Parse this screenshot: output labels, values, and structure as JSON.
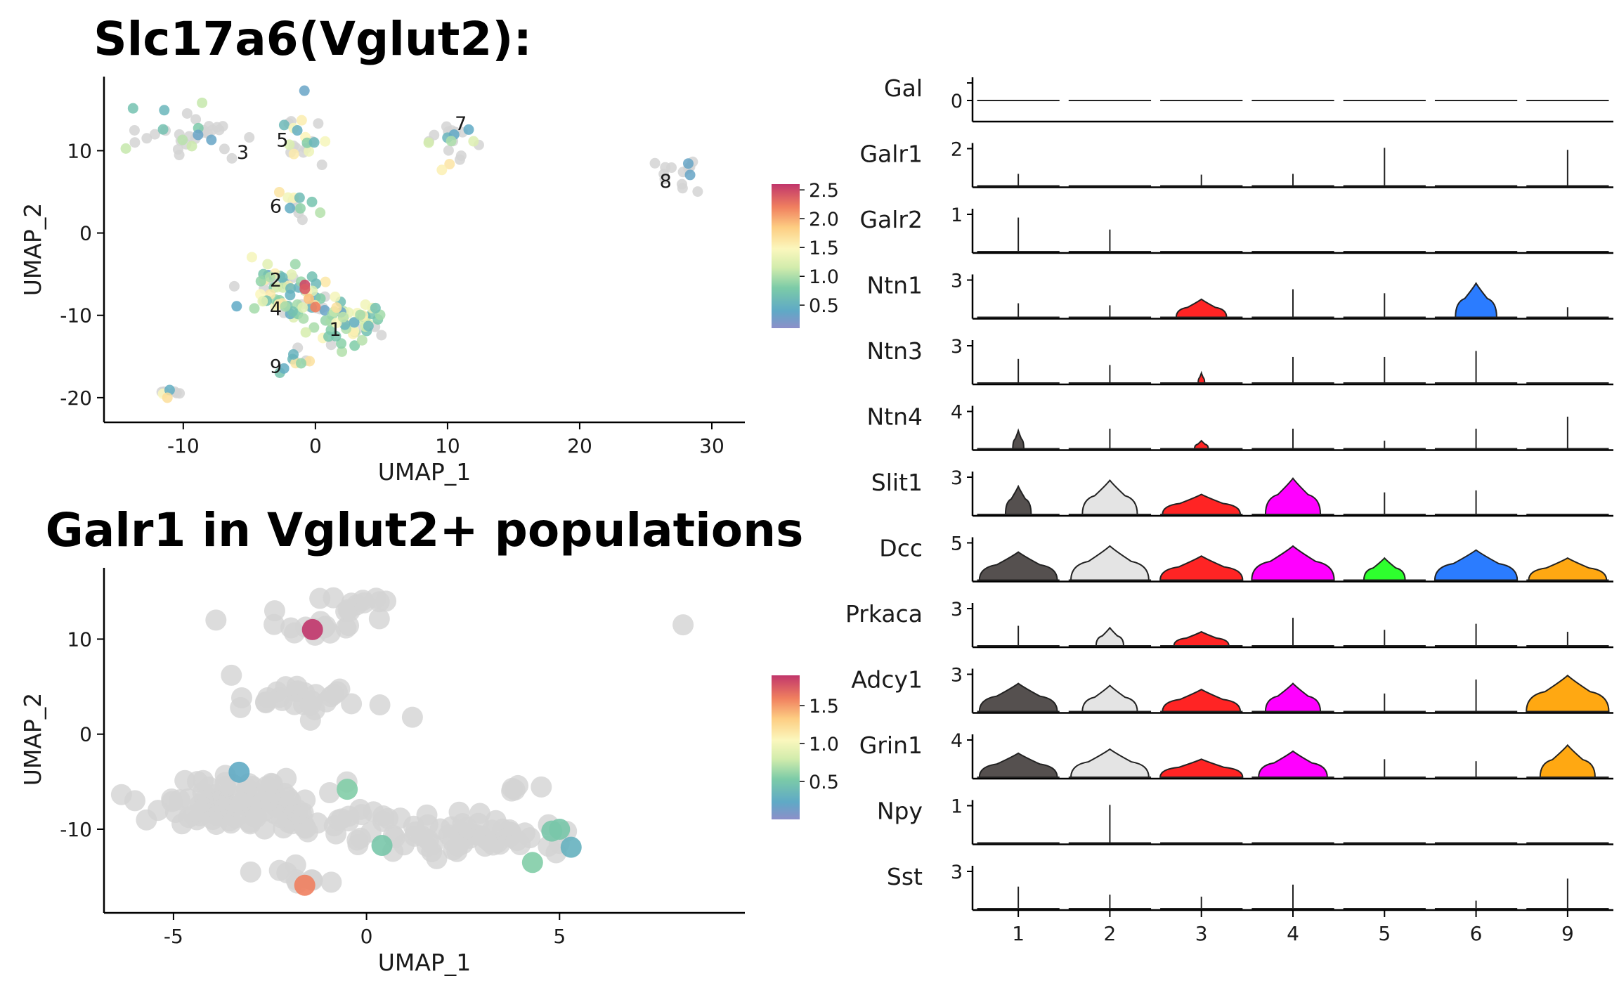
{
  "chart_data": [
    {
      "type": "scatter",
      "title": "Slc17a6(Vglut2):",
      "xlabel": "UMAP_1",
      "ylabel": "UMAP_2",
      "xlim": [
        -16,
        32.5
      ],
      "ylim": [
        -23,
        19
      ],
      "xticks": [
        -10,
        0,
        10,
        20,
        30
      ],
      "yticks": [
        -20,
        -10,
        0,
        10
      ],
      "xtick_labels": [
        "-10",
        "0",
        "10",
        "20",
        "30"
      ],
      "ytick_labels": [
        "-20",
        "-10",
        "0",
        "10"
      ],
      "colorbar": {
        "colormap": "Spectral_r",
        "min": 0.1,
        "max": 2.6,
        "ticks": [
          0.5,
          1.0,
          1.5,
          2.0,
          2.5
        ],
        "tick_labels": [
          "0.5",
          "1.0",
          "1.5",
          "2.0",
          "2.5"
        ]
      },
      "cluster_labels": [
        {
          "text": "1",
          "x": 1.5,
          "y": -12.5
        },
        {
          "text": "2",
          "x": -3,
          "y": -6.5
        },
        {
          "text": "3",
          "x": -5.5,
          "y": 9
        },
        {
          "text": "4",
          "x": -3,
          "y": -10
        },
        {
          "text": "5",
          "x": -2.5,
          "y": 10.5
        },
        {
          "text": "6",
          "x": -3,
          "y": 2.5
        },
        {
          "text": "7",
          "x": 11,
          "y": 12.5
        },
        {
          "text": "8",
          "x": 26.5,
          "y": 5.5
        },
        {
          "text": "9",
          "x": -3,
          "y": -17
        }
      ],
      "clusters": [
        {
          "name": "1",
          "cx": 2.5,
          "cy": -11,
          "sx": 1.6,
          "sy": 1.3,
          "n": 55,
          "expr_frac": 0.85
        },
        {
          "name": "2",
          "cx": -2.5,
          "cy": -6.5,
          "sx": 1.5,
          "sy": 1.4,
          "n": 45,
          "expr_frac": 0.75
        },
        {
          "name": "4",
          "cx": -1.5,
          "cy": -9,
          "sx": 1.2,
          "sy": 1.0,
          "n": 25,
          "expr_frac": 0.7
        },
        {
          "name": "3",
          "cx": -10,
          "cy": 12,
          "sx": 1.8,
          "sy": 1.4,
          "n": 35,
          "expr_frac": 0.2
        },
        {
          "name": "5",
          "cx": -1,
          "cy": 11.5,
          "sx": 1.0,
          "sy": 1.8,
          "n": 22,
          "expr_frac": 0.45
        },
        {
          "name": "6",
          "cx": -1.5,
          "cy": 3.5,
          "sx": 0.8,
          "sy": 1.0,
          "n": 12,
          "expr_frac": 0.6
        },
        {
          "name": "7",
          "cx": 10.5,
          "cy": 11,
          "sx": 0.9,
          "sy": 1.0,
          "n": 20,
          "expr_frac": 0.45
        },
        {
          "name": "8",
          "cx": 28,
          "cy": 6.5,
          "sx": 0.9,
          "sy": 1.1,
          "n": 14,
          "expr_frac": 0.15
        },
        {
          "name": "9",
          "cx": -1.5,
          "cy": -15.5,
          "sx": 0.6,
          "sy": 0.8,
          "n": 10,
          "expr_frac": 0.6
        },
        {
          "name": "",
          "cx": -11,
          "cy": -19.5,
          "sx": 0.6,
          "sy": 0.4,
          "n": 8,
          "expr_frac": 0.3
        }
      ],
      "high_points": [
        {
          "x": -0.8,
          "y": -6.3,
          "v": 2.5
        },
        {
          "x": -0.8,
          "y": -6.8,
          "v": 2.4
        },
        {
          "x": 0,
          "y": -9,
          "v": 2.2
        },
        {
          "x": -0.5,
          "y": -8,
          "v": 1.9
        }
      ]
    },
    {
      "type": "scatter",
      "title": "Galr1 in Vglut2+ populations",
      "xlabel": "UMAP_1",
      "ylabel": "UMAP_2",
      "xlim": [
        -6.8,
        9.8
      ],
      "ylim": [
        -18.8,
        17.5
      ],
      "xticks": [
        -5,
        0,
        5
      ],
      "yticks": [
        -10,
        0,
        10
      ],
      "xtick_labels": [
        "-5",
        "0",
        "5"
      ],
      "ytick_labels": [
        "-10",
        "0",
        "10"
      ],
      "colorbar": {
        "colormap": "Spectral_r",
        "min": 0.0,
        "max": 1.9,
        "ticks": [
          0.5,
          1.0,
          1.5
        ],
        "tick_labels": [
          "0.5",
          "1.0",
          "1.5"
        ]
      },
      "clusters": [
        {
          "cx": -3.5,
          "cy": -7,
          "sx": 1.0,
          "sy": 1.3,
          "n": 70
        },
        {
          "cx": -1.5,
          "cy": -9,
          "sx": 1.3,
          "sy": 0.7,
          "n": 45
        },
        {
          "cx": 2.5,
          "cy": -11,
          "sx": 1.5,
          "sy": 1.0,
          "n": 60
        },
        {
          "cx": -1.5,
          "cy": 3.5,
          "sx": 1.0,
          "sy": 1.2,
          "n": 28
        },
        {
          "cx": -1.2,
          "cy": 11,
          "sx": 0.6,
          "sy": 1.0,
          "n": 16
        },
        {
          "cx": -0.5,
          "cy": 14,
          "sx": 0.4,
          "sy": 0.5,
          "n": 10
        },
        {
          "cx": -1.8,
          "cy": -15,
          "sx": 0.4,
          "sy": 0.6,
          "n": 8
        },
        {
          "cx": 3.8,
          "cy": -6,
          "sx": 0.3,
          "sy": 0.3,
          "n": 5
        }
      ],
      "extra_points": [
        {
          "x": -3.9,
          "y": 12,
          "v": 0
        },
        {
          "x": 8.2,
          "y": 11.5,
          "v": 0
        },
        {
          "x": 0.5,
          "y": 14,
          "v": 0
        },
        {
          "x": -3.5,
          "y": 6.2,
          "v": 0
        },
        {
          "x": -6,
          "y": -7,
          "v": 0
        },
        {
          "x": -3,
          "y": -14.5,
          "v": 0
        }
      ],
      "expressing_points": [
        {
          "x": -1.4,
          "y": 11,
          "v": 1.9
        },
        {
          "x": -1.6,
          "y": -15.9,
          "v": 1.6
        },
        {
          "x": -3.3,
          "y": -4,
          "v": 0.25
        },
        {
          "x": -0.5,
          "y": -5.8,
          "v": 0.55
        },
        {
          "x": 0.4,
          "y": -11.7,
          "v": 0.5
        },
        {
          "x": 4.3,
          "y": -13.5,
          "v": 0.55
        },
        {
          "x": 4.8,
          "y": -10.2,
          "v": 0.5
        },
        {
          "x": 5.0,
          "y": -10.0,
          "v": 0.5
        },
        {
          "x": 5.3,
          "y": -11.9,
          "v": 0.3
        }
      ]
    },
    {
      "type": "violin",
      "categories": [
        "1",
        "2",
        "3",
        "4",
        "5",
        "6",
        "9"
      ],
      "category_colors": [
        "#55504f",
        "#e4e4e4",
        "#ff2424",
        "#ff00ff",
        "#2eff2e",
        "#2b7cff",
        "#ffa812"
      ],
      "genes": [
        {
          "name": "Gal",
          "ymax": "0",
          "heights": [
            0,
            0,
            0,
            0,
            0,
            0,
            0
          ],
          "widths": [
            0,
            0,
            0,
            0,
            0,
            0,
            0
          ]
        },
        {
          "name": "Galr1",
          "ymax": "2",
          "heights": [
            0.3,
            0,
            0.28,
            0.3,
            0.95,
            0,
            0.9
          ],
          "widths": [
            0.015,
            0,
            0.04,
            0.015,
            0.015,
            0,
            0.015
          ]
        },
        {
          "name": "Galr2",
          "ymax": "1",
          "heights": [
            0.85,
            0.55,
            0,
            0,
            0,
            0,
            0
          ],
          "widths": [
            0.015,
            0.015,
            0,
            0,
            0,
            0,
            0
          ]
        },
        {
          "name": "Ntn1",
          "ymax": "3",
          "heights": [
            0.35,
            0.3,
            0.45,
            0.7,
            0.6,
            0.85,
            0.25
          ],
          "widths": [
            0.015,
            0.015,
            0.55,
            0.015,
            0.025,
            0.45,
            0.06
          ]
        },
        {
          "name": "Ntn3",
          "ymax": "3",
          "heights": [
            0.6,
            0.45,
            0.25,
            0.65,
            0.65,
            0.8,
            0
          ],
          "widths": [
            0.015,
            0.015,
            0.07,
            0.015,
            0.02,
            0.015,
            0
          ]
        },
        {
          "name": "Ntn4",
          "ymax": "4",
          "heights": [
            0.45,
            0.5,
            0.2,
            0.5,
            0.2,
            0.5,
            0.8
          ],
          "widths": [
            0.12,
            0.015,
            0.15,
            0.015,
            0.015,
            0.015,
            0.035
          ]
        },
        {
          "name": "Slit1",
          "ymax": "3",
          "heights": [
            0.7,
            0.85,
            0.5,
            0.9,
            0.55,
            0.6,
            0
          ],
          "widths": [
            0.28,
            0.6,
            0.85,
            0.6,
            0.015,
            0.015,
            0
          ]
        },
        {
          "name": "Dcc",
          "ymax": "5",
          "heights": [
            0.7,
            0.85,
            0.6,
            0.85,
            0.55,
            0.75,
            0.55
          ],
          "widths": [
            0.85,
            0.85,
            0.9,
            0.9,
            0.45,
            0.9,
            0.85
          ]
        },
        {
          "name": "Prkaca",
          "ymax": "3",
          "heights": [
            0.5,
            0.45,
            0.35,
            0.7,
            0.4,
            0.55,
            0.35
          ],
          "widths": [
            0.015,
            0.3,
            0.6,
            0.015,
            0.015,
            0.015,
            0.015
          ]
        },
        {
          "name": "Adcy1",
          "ymax": "3",
          "heights": [
            0.7,
            0.65,
            0.55,
            0.7,
            0.45,
            0.8,
            0.9
          ],
          "widths": [
            0.85,
            0.6,
            0.85,
            0.6,
            0.015,
            0.015,
            0.9
          ]
        },
        {
          "name": "Grin1",
          "ymax": "4",
          "heights": [
            0.6,
            0.7,
            0.45,
            0.65,
            0.45,
            0.4,
            0.8
          ],
          "widths": [
            0.85,
            0.85,
            0.9,
            0.75,
            0.015,
            0.015,
            0.6
          ]
        },
        {
          "name": "Npy",
          "ymax": "1",
          "heights": [
            0,
            0.95,
            0,
            0,
            0,
            0,
            0
          ],
          "widths": [
            0,
            0.015,
            0,
            0,
            0,
            0,
            0
          ]
        },
        {
          "name": "Sst",
          "ymax": "3",
          "heights": [
            0.55,
            0.35,
            0.3,
            0.6,
            0,
            0.2,
            0.75
          ],
          "widths": [
            0.015,
            0.015,
            0.015,
            0.015,
            0,
            0.015,
            0.015
          ]
        }
      ]
    }
  ]
}
